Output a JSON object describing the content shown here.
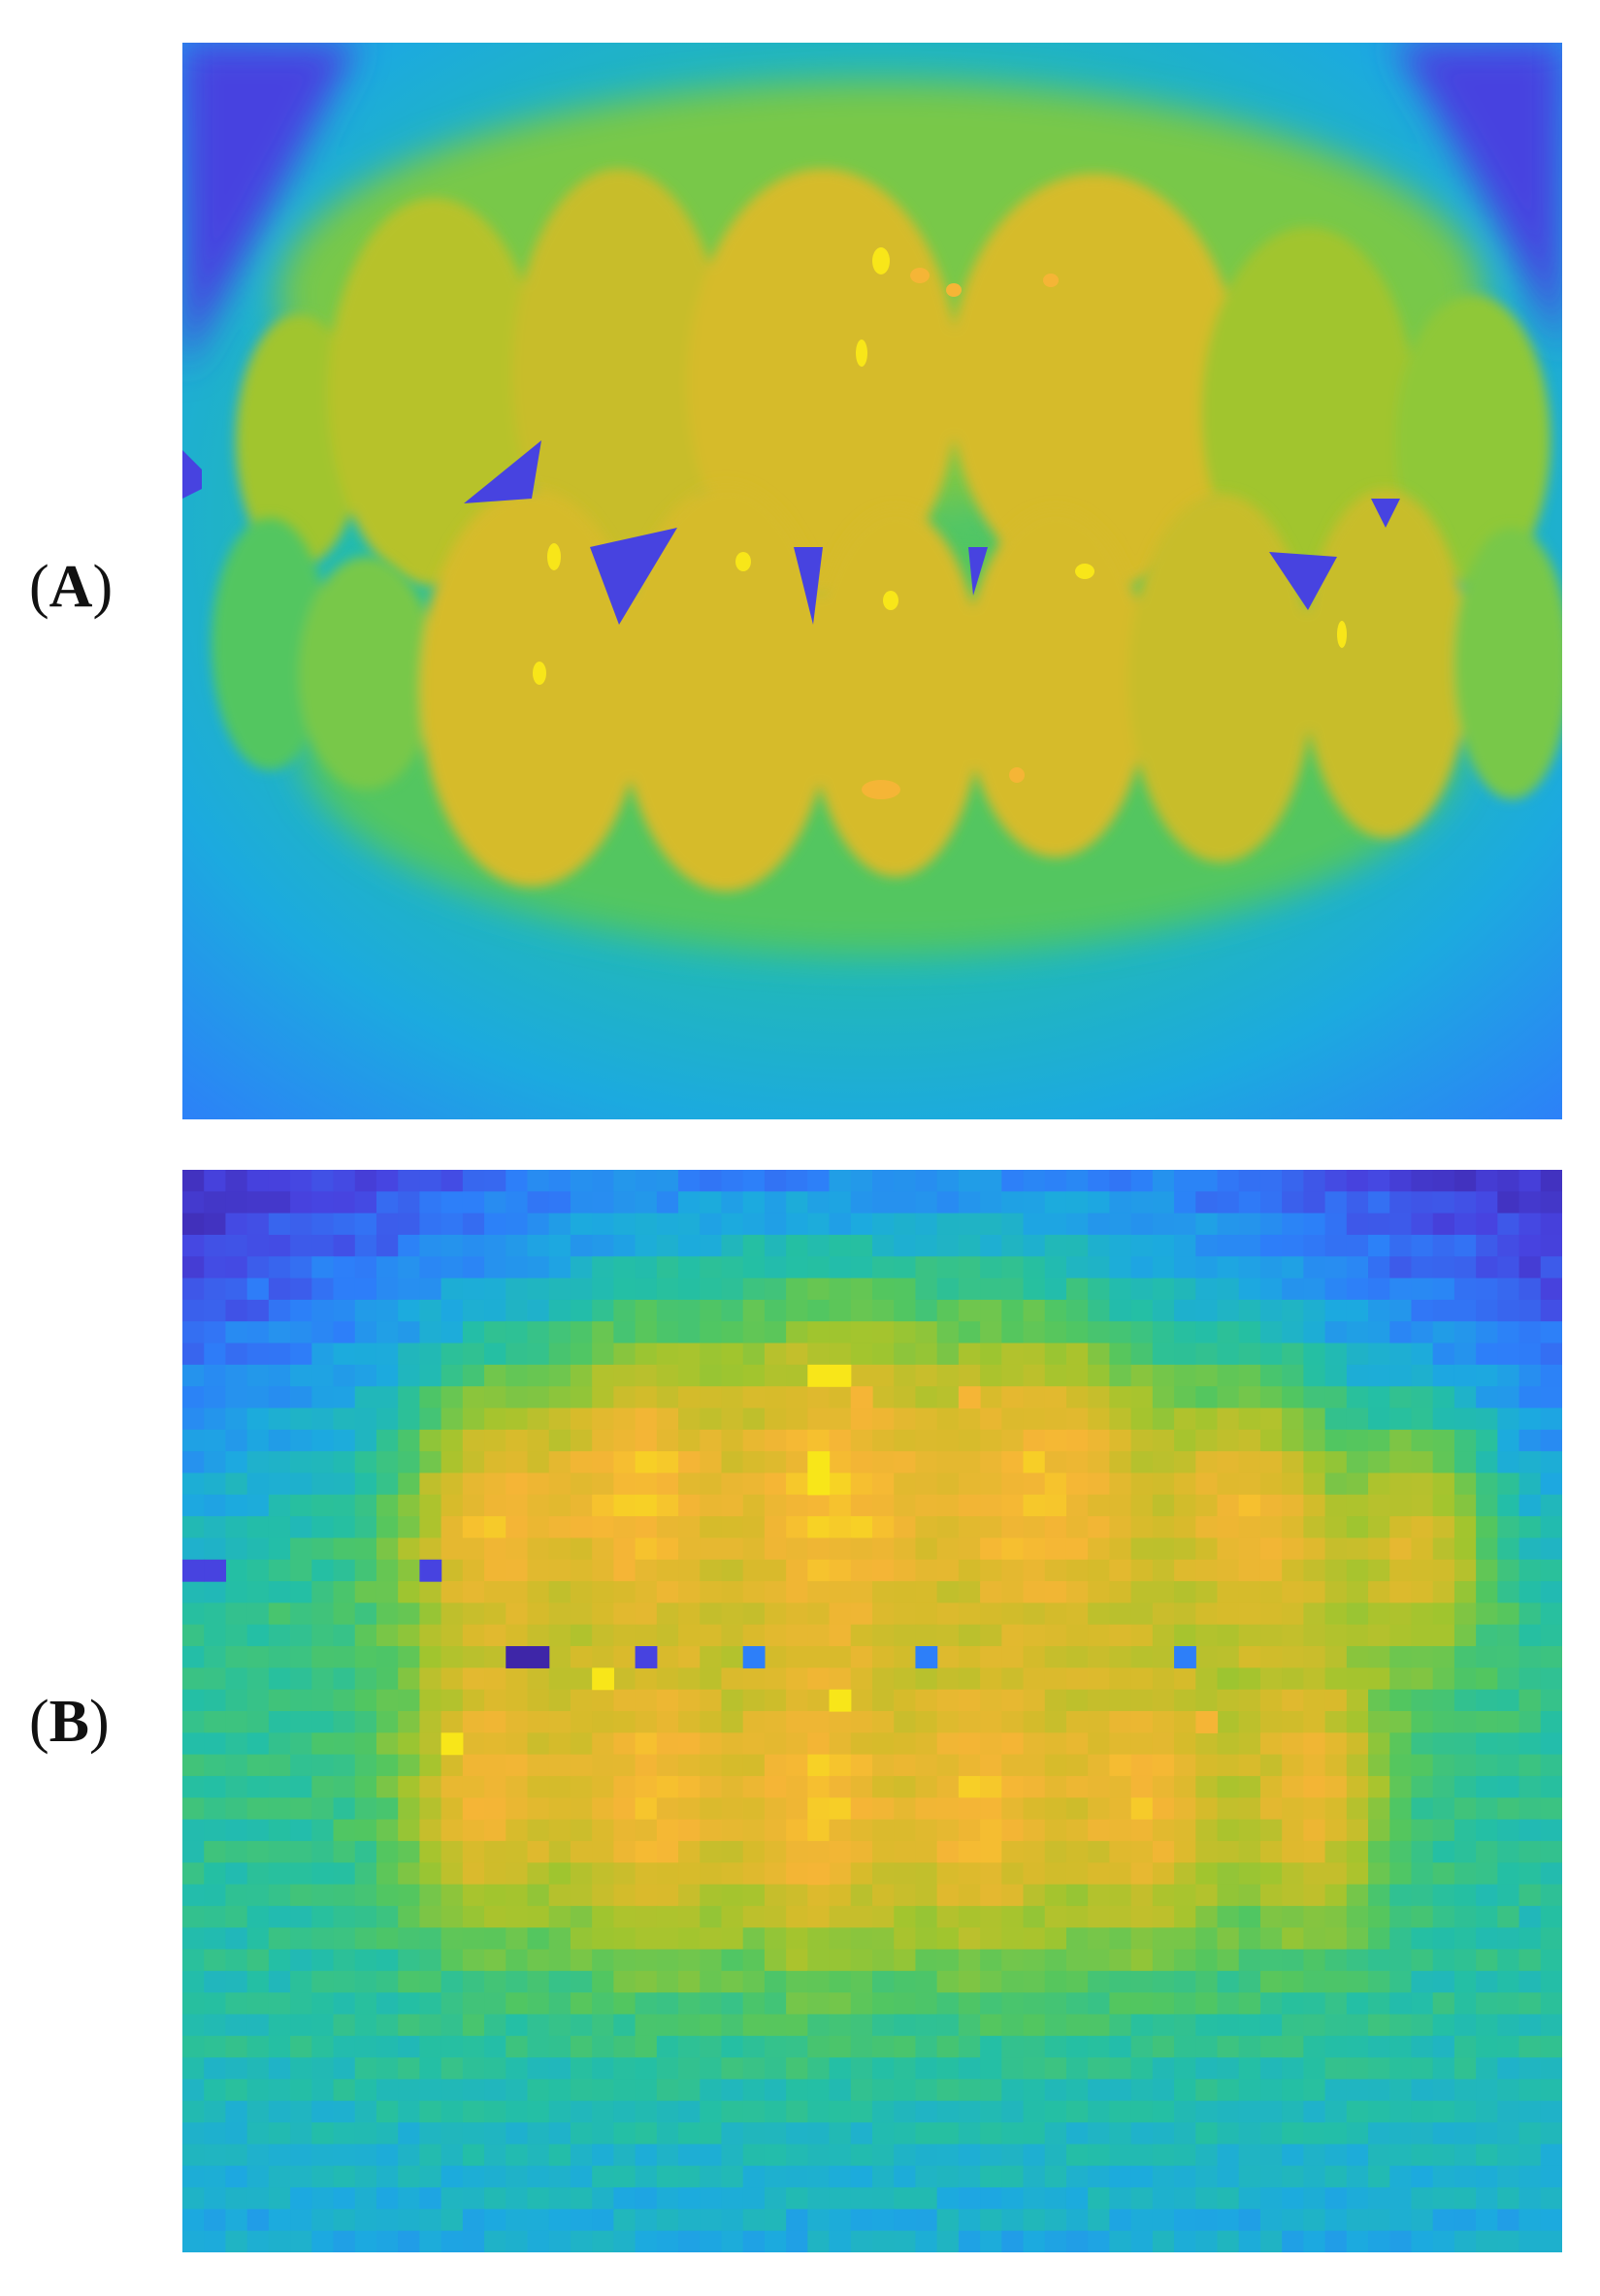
{
  "figure": {
    "panels": [
      {
        "label_open": "(",
        "label_letter": "A",
        "label_close": ")",
        "kind": "smooth thermal-colormap image of front teeth"
      },
      {
        "label_open": "(",
        "label_letter": "B",
        "label_close": ")",
        "kind": "pixelated thermal-colormap image of front teeth"
      }
    ]
  },
  "colormap": {
    "name": "parula",
    "stops": [
      "#3e26a8",
      "#4743e0",
      "#2d7ff9",
      "#1caadf",
      "#24bfa4",
      "#52c660",
      "#a1c52e",
      "#d6bb2b",
      "#f5b536",
      "#f8e619"
    ]
  }
}
